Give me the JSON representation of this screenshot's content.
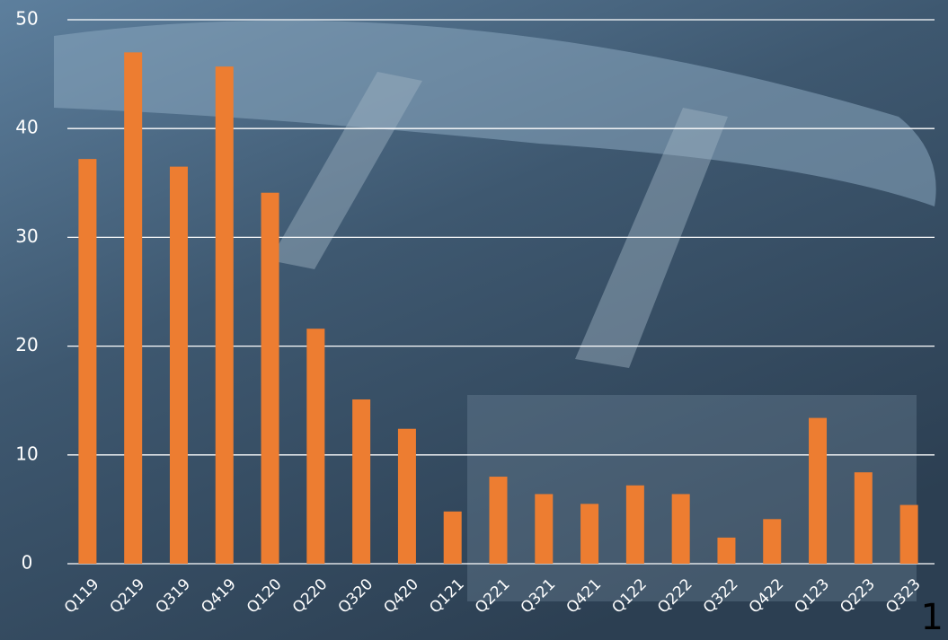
{
  "chart_data": {
    "type": "bar",
    "categories": [
      "Q119",
      "Q219",
      "Q319",
      "Q419",
      "Q120",
      "Q220",
      "Q320",
      "Q420",
      "Q121",
      "Q221",
      "Q321",
      "Q421",
      "Q122",
      "Q222",
      "Q322",
      "Q422",
      "Q123",
      "Q223",
      "Q323"
    ],
    "values": [
      37.2,
      47.0,
      36.5,
      45.7,
      34.1,
      21.6,
      15.1,
      12.4,
      4.8,
      8.0,
      6.4,
      5.5,
      7.2,
      6.4,
      2.4,
      4.1,
      13.4,
      8.4,
      5.4
    ],
    "color": "#ed7d31",
    "ylim": [
      0,
      50
    ],
    "yticks": [
      0,
      10,
      20,
      30,
      40,
      50
    ],
    "grid": true
  },
  "page_number": "1"
}
